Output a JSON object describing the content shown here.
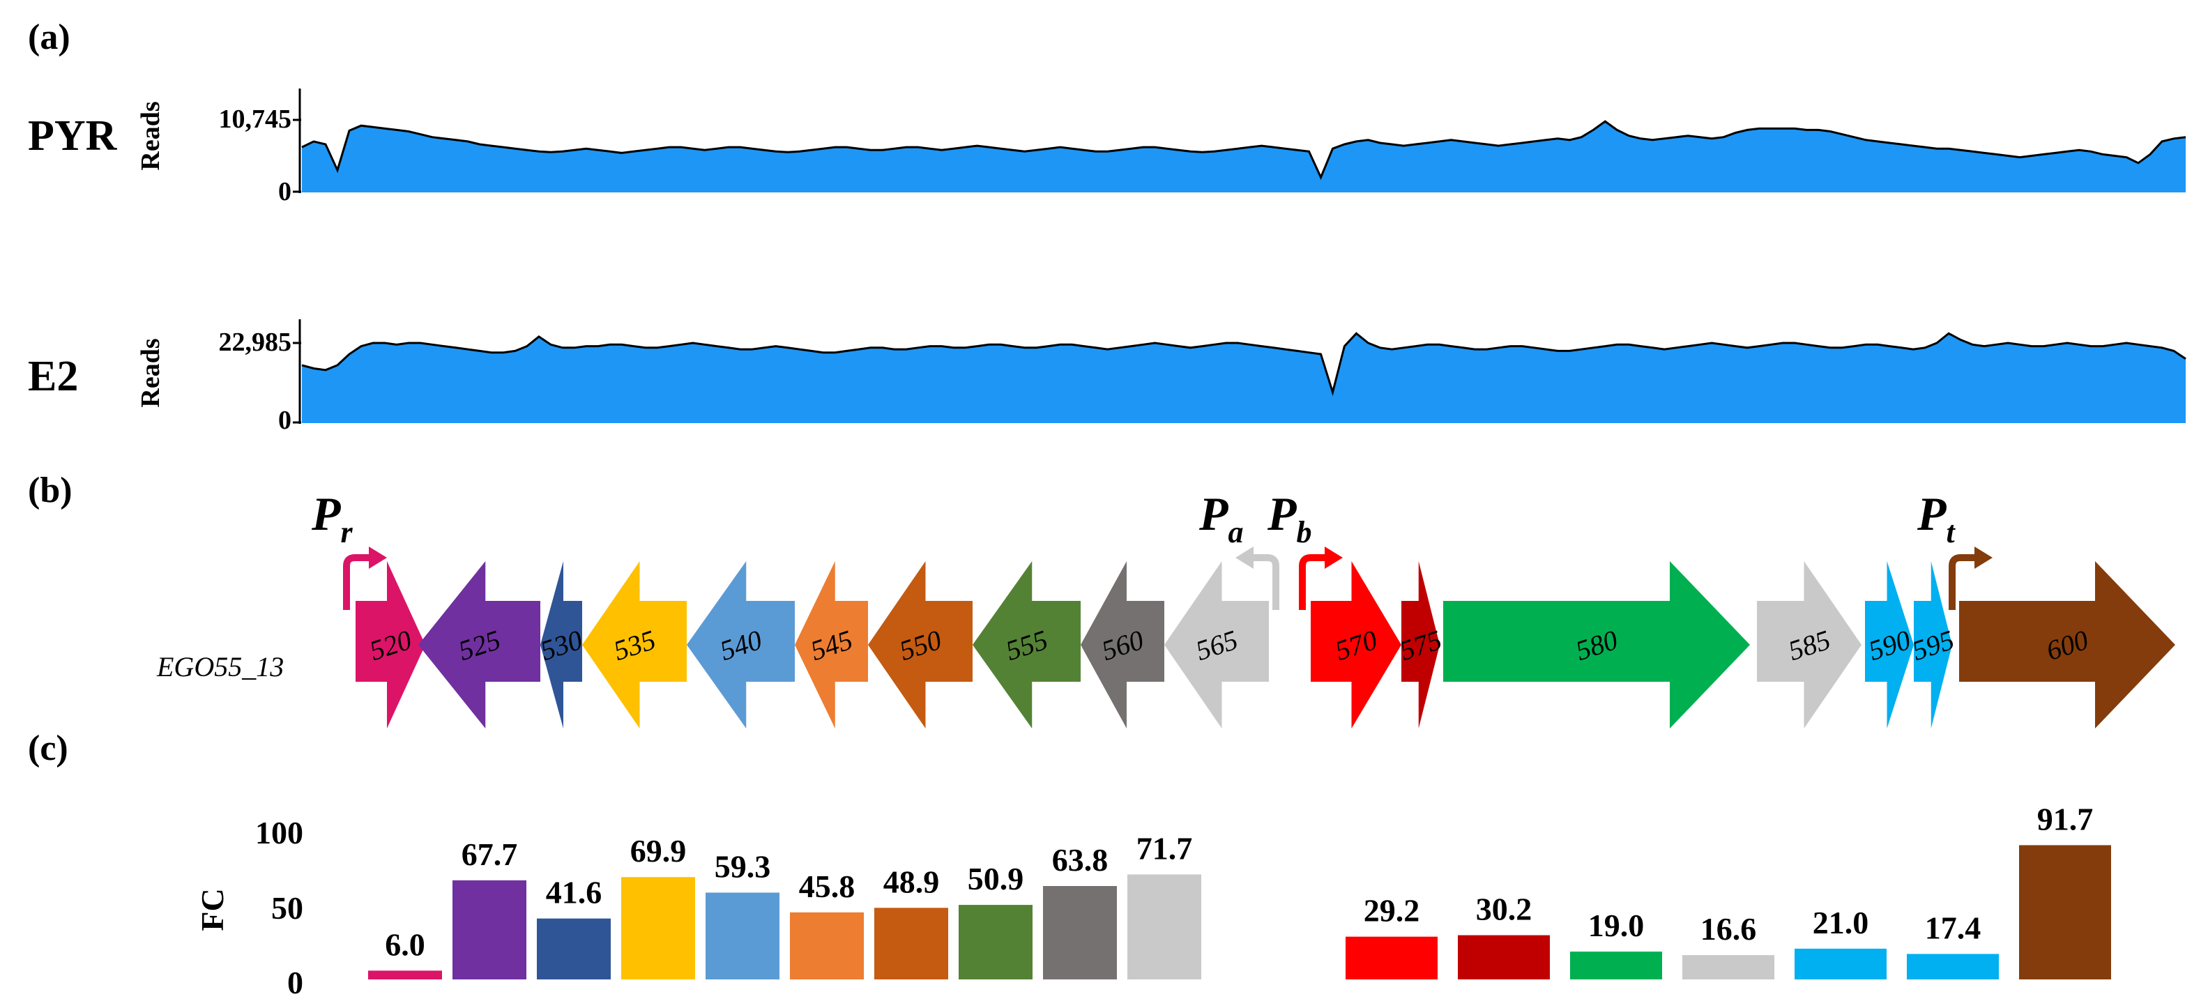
{
  "panels": {
    "a": "(a)",
    "b": "(b)",
    "c": "(c)"
  },
  "tracks": [
    {
      "name": "PYR",
      "axis_title": "Reads",
      "max_label": "10,745",
      "min_label": "0",
      "fill_color": "#1E96F5",
      "edge_color": "#000000",
      "profile": [
        0.62,
        0.7,
        0.66,
        0.3,
        0.85,
        0.92,
        0.9,
        0.88,
        0.86,
        0.84,
        0.8,
        0.76,
        0.74,
        0.72,
        0.7,
        0.66,
        0.64,
        0.62,
        0.6,
        0.58,
        0.56,
        0.55,
        0.56,
        0.58,
        0.6,
        0.58,
        0.56,
        0.54,
        0.56,
        0.58,
        0.6,
        0.62,
        0.62,
        0.6,
        0.58,
        0.6,
        0.62,
        0.62,
        0.6,
        0.58,
        0.56,
        0.55,
        0.56,
        0.58,
        0.6,
        0.62,
        0.62,
        0.6,
        0.58,
        0.58,
        0.6,
        0.62,
        0.62,
        0.6,
        0.58,
        0.6,
        0.62,
        0.64,
        0.62,
        0.6,
        0.58,
        0.56,
        0.58,
        0.6,
        0.62,
        0.6,
        0.58,
        0.56,
        0.56,
        0.58,
        0.6,
        0.62,
        0.62,
        0.6,
        0.58,
        0.56,
        0.55,
        0.56,
        0.58,
        0.6,
        0.62,
        0.64,
        0.62,
        0.6,
        0.58,
        0.56,
        0.2,
        0.6,
        0.66,
        0.7,
        0.72,
        0.68,
        0.66,
        0.64,
        0.66,
        0.68,
        0.7,
        0.72,
        0.7,
        0.68,
        0.66,
        0.64,
        0.66,
        0.68,
        0.7,
        0.72,
        0.74,
        0.72,
        0.76,
        0.86,
        0.98,
        0.86,
        0.78,
        0.74,
        0.72,
        0.74,
        0.76,
        0.78,
        0.76,
        0.74,
        0.76,
        0.82,
        0.86,
        0.88,
        0.88,
        0.88,
        0.88,
        0.86,
        0.86,
        0.84,
        0.8,
        0.76,
        0.72,
        0.7,
        0.68,
        0.66,
        0.64,
        0.62,
        0.6,
        0.6,
        0.58,
        0.56,
        0.54,
        0.52,
        0.5,
        0.48,
        0.5,
        0.52,
        0.54,
        0.56,
        0.58,
        0.56,
        0.52,
        0.5,
        0.48,
        0.4,
        0.52,
        0.7,
        0.74,
        0.76
      ]
    },
    {
      "name": "E2",
      "axis_title": "Reads",
      "max_label": "22,985",
      "min_label": "0",
      "fill_color": "#1E96F5",
      "edge_color": "#000000",
      "profile": [
        0.72,
        0.68,
        0.66,
        0.72,
        0.86,
        0.96,
        1.0,
        1.0,
        0.98,
        1.0,
        1.0,
        0.98,
        0.96,
        0.94,
        0.92,
        0.9,
        0.88,
        0.88,
        0.9,
        0.96,
        1.08,
        0.98,
        0.94,
        0.94,
        0.96,
        0.96,
        0.98,
        0.98,
        0.96,
        0.94,
        0.94,
        0.96,
        0.98,
        1.0,
        0.98,
        0.96,
        0.94,
        0.92,
        0.92,
        0.94,
        0.96,
        0.94,
        0.92,
        0.9,
        0.88,
        0.88,
        0.9,
        0.92,
        0.94,
        0.94,
        0.92,
        0.92,
        0.94,
        0.96,
        0.96,
        0.94,
        0.94,
        0.96,
        0.98,
        0.98,
        0.96,
        0.94,
        0.94,
        0.96,
        0.98,
        0.98,
        0.96,
        0.94,
        0.92,
        0.94,
        0.96,
        0.98,
        1.0,
        0.98,
        0.96,
        0.94,
        0.96,
        0.98,
        1.0,
        1.0,
        0.98,
        0.96,
        0.94,
        0.92,
        0.9,
        0.88,
        0.86,
        0.38,
        0.96,
        1.12,
        1.0,
        0.94,
        0.92,
        0.94,
        0.96,
        0.98,
        0.98,
        0.96,
        0.94,
        0.92,
        0.92,
        0.94,
        0.96,
        0.96,
        0.94,
        0.92,
        0.9,
        0.9,
        0.92,
        0.94,
        0.96,
        0.98,
        0.98,
        0.96,
        0.94,
        0.92,
        0.94,
        0.96,
        0.98,
        1.0,
        0.98,
        0.96,
        0.94,
        0.96,
        0.98,
        1.0,
        1.0,
        0.98,
        0.96,
        0.94,
        0.94,
        0.96,
        0.98,
        0.98,
        0.96,
        0.94,
        0.92,
        0.94,
        1.0,
        1.12,
        1.04,
        0.98,
        0.96,
        0.98,
        1.0,
        0.98,
        0.96,
        0.96,
        0.98,
        1.0,
        0.98,
        0.96,
        0.96,
        0.98,
        1.0,
        0.98,
        0.96,
        0.94,
        0.9,
        0.8
      ]
    }
  ],
  "operon": {
    "label": "EGO55_13",
    "genes": [
      {
        "id": "520",
        "dir": "right",
        "color": "#DC1467",
        "start": 510,
        "end": 610
      },
      {
        "id": "525",
        "dir": "left",
        "color": "#7030A0",
        "start": 600,
        "end": 775
      },
      {
        "id": "530",
        "dir": "left",
        "color": "#2F5597",
        "start": 775,
        "end": 835
      },
      {
        "id": "535",
        "dir": "left",
        "color": "#FFC000",
        "start": 835,
        "end": 985
      },
      {
        "id": "540",
        "dir": "left",
        "color": "#5B9BD5",
        "start": 985,
        "end": 1140
      },
      {
        "id": "545",
        "dir": "left",
        "color": "#ED7D31",
        "start": 1140,
        "end": 1245
      },
      {
        "id": "550",
        "dir": "left",
        "color": "#C55A11",
        "start": 1245,
        "end": 1395
      },
      {
        "id": "555",
        "dir": "left",
        "color": "#548235",
        "start": 1395,
        "end": 1550
      },
      {
        "id": "560",
        "dir": "left",
        "color": "#767171",
        "start": 1550,
        "end": 1670
      },
      {
        "id": "565",
        "dir": "left",
        "color": "#C9C9C9",
        "start": 1670,
        "end": 1820
      },
      {
        "id": "570",
        "dir": "right",
        "color": "#FF0000",
        "start": 1880,
        "end": 2010
      },
      {
        "id": "575",
        "dir": "right",
        "color": "#C00000",
        "start": 2010,
        "end": 2065
      },
      {
        "id": "580",
        "dir": "right",
        "color": "#00B050",
        "start": 2070,
        "end": 2510
      },
      {
        "id": "585",
        "dir": "right",
        "color": "#C9C9C9",
        "start": 2520,
        "end": 2670
      },
      {
        "id": "590",
        "dir": "right",
        "color": "#00B0F0",
        "start": 2675,
        "end": 2745
      },
      {
        "id": "595",
        "dir": "right",
        "color": "#00B0F0",
        "start": 2745,
        "end": 2800
      },
      {
        "id": "600",
        "dir": "right",
        "color": "#843C0C",
        "start": 2810,
        "end": 3120
      }
    ],
    "promoters": [
      {
        "letter": "P",
        "sub": "r",
        "color": "#DC1467",
        "x": 497,
        "dir": "right"
      },
      {
        "letter": "P",
        "sub": "a",
        "color": "#C9C9C9",
        "x": 1830,
        "dir": "left"
      },
      {
        "letter": "P",
        "sub": "b",
        "color": "#FF0000",
        "x": 1868,
        "dir": "right"
      },
      {
        "letter": "P",
        "sub": "t",
        "color": "#843C0C",
        "x": 2800,
        "dir": "right"
      }
    ]
  },
  "chart_data": {
    "type": "bar",
    "ylabel": "FC",
    "ylim": [
      0,
      100
    ],
    "yticks": [
      "0",
      "50",
      "100"
    ],
    "groups": [
      {
        "bars": [
          {
            "gene": "520",
            "value": 6.0,
            "label": "6.0",
            "color": "#DC1467"
          },
          {
            "gene": "525",
            "value": 67.7,
            "label": "67.7",
            "color": "#7030A0"
          },
          {
            "gene": "530",
            "value": 41.6,
            "label": "41.6",
            "color": "#2F5597"
          },
          {
            "gene": "535",
            "value": 69.9,
            "label": "69.9",
            "color": "#FFC000"
          },
          {
            "gene": "540",
            "value": 59.3,
            "label": "59.3",
            "color": "#5B9BD5"
          },
          {
            "gene": "545",
            "value": 45.8,
            "label": "45.8",
            "color": "#ED7D31"
          },
          {
            "gene": "550",
            "value": 48.9,
            "label": "48.9",
            "color": "#C55A11"
          },
          {
            "gene": "555",
            "value": 50.9,
            "label": "50.9",
            "color": "#548235"
          },
          {
            "gene": "560",
            "value": 63.8,
            "label": "63.8",
            "color": "#767171"
          },
          {
            "gene": "565",
            "value": 71.7,
            "label": "71.7",
            "color": "#C9C9C9"
          }
        ]
      },
      {
        "bars": [
          {
            "gene": "570",
            "value": 29.2,
            "label": "29.2",
            "color": "#FF0000"
          },
          {
            "gene": "575",
            "value": 30.2,
            "label": "30.2",
            "color": "#C00000"
          },
          {
            "gene": "580",
            "value": 19.0,
            "label": "19.0",
            "color": "#00B050"
          },
          {
            "gene": "585",
            "value": 16.6,
            "label": "16.6",
            "color": "#C9C9C9"
          },
          {
            "gene": "590",
            "value": 21.0,
            "label": "21.0",
            "color": "#00B0F0"
          },
          {
            "gene": "595",
            "value": 17.4,
            "label": "17.4",
            "color": "#00B0F0"
          },
          {
            "gene": "600",
            "value": 91.7,
            "label": "91.7",
            "color": "#843C0C"
          }
        ]
      }
    ]
  }
}
